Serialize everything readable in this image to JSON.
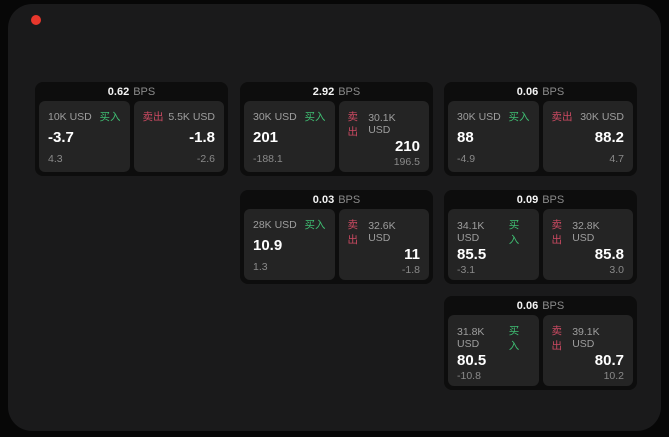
{
  "labels": {
    "bps_unit": "BPS",
    "buy": "买入",
    "sell": "卖出"
  },
  "colors": {
    "window_bg": "#1a1a1b",
    "card_bg": "#0d0d0d",
    "panel_bg": "#242424",
    "buy_green": "#3fbf73",
    "sell_red": "#cc4a62",
    "label_gray": "#9e9e9e",
    "sub_gray": "#8a8a8a",
    "bps_gray": "#8b8b8b",
    "dot_red": "#e8372c"
  },
  "cards": [
    {
      "row": 0,
      "col": 0,
      "bps": "0.62",
      "buy": {
        "amount": "10K USD",
        "value": "-3.7",
        "sub": "4.3"
      },
      "sell": {
        "amount": "5.5K USD",
        "value": "-1.8",
        "sub": "-2.6"
      }
    },
    {
      "row": 0,
      "col": 1,
      "bps": "2.92",
      "buy": {
        "amount": "30K USD",
        "value": "201",
        "sub": "-188.1"
      },
      "sell": {
        "amount": "30.1K USD",
        "value": "210",
        "sub": "196.5"
      }
    },
    {
      "row": 0,
      "col": 2,
      "bps": "0.06",
      "buy": {
        "amount": "30K USD",
        "value": "88",
        "sub": "-4.9"
      },
      "sell": {
        "amount": "30K USD",
        "value": "88.2",
        "sub": "4.7"
      }
    },
    {
      "row": 1,
      "col": 1,
      "bps": "0.03",
      "buy": {
        "amount": "28K USD",
        "value": "10.9",
        "sub": "1.3"
      },
      "sell": {
        "amount": "32.6K USD",
        "value": "11",
        "sub": "-1.8"
      }
    },
    {
      "row": 1,
      "col": 2,
      "bps": "0.09",
      "buy": {
        "amount": "34.1K USD",
        "value": "85.5",
        "sub": "-3.1"
      },
      "sell": {
        "amount": "32.8K USD",
        "value": "85.8",
        "sub": "3.0"
      }
    },
    {
      "row": 2,
      "col": 2,
      "bps": "0.06",
      "buy": {
        "amount": "31.8K USD",
        "value": "80.5",
        "sub": "-10.8"
      },
      "sell": {
        "amount": "39.1K USD",
        "value": "80.7",
        "sub": "10.2"
      }
    }
  ]
}
